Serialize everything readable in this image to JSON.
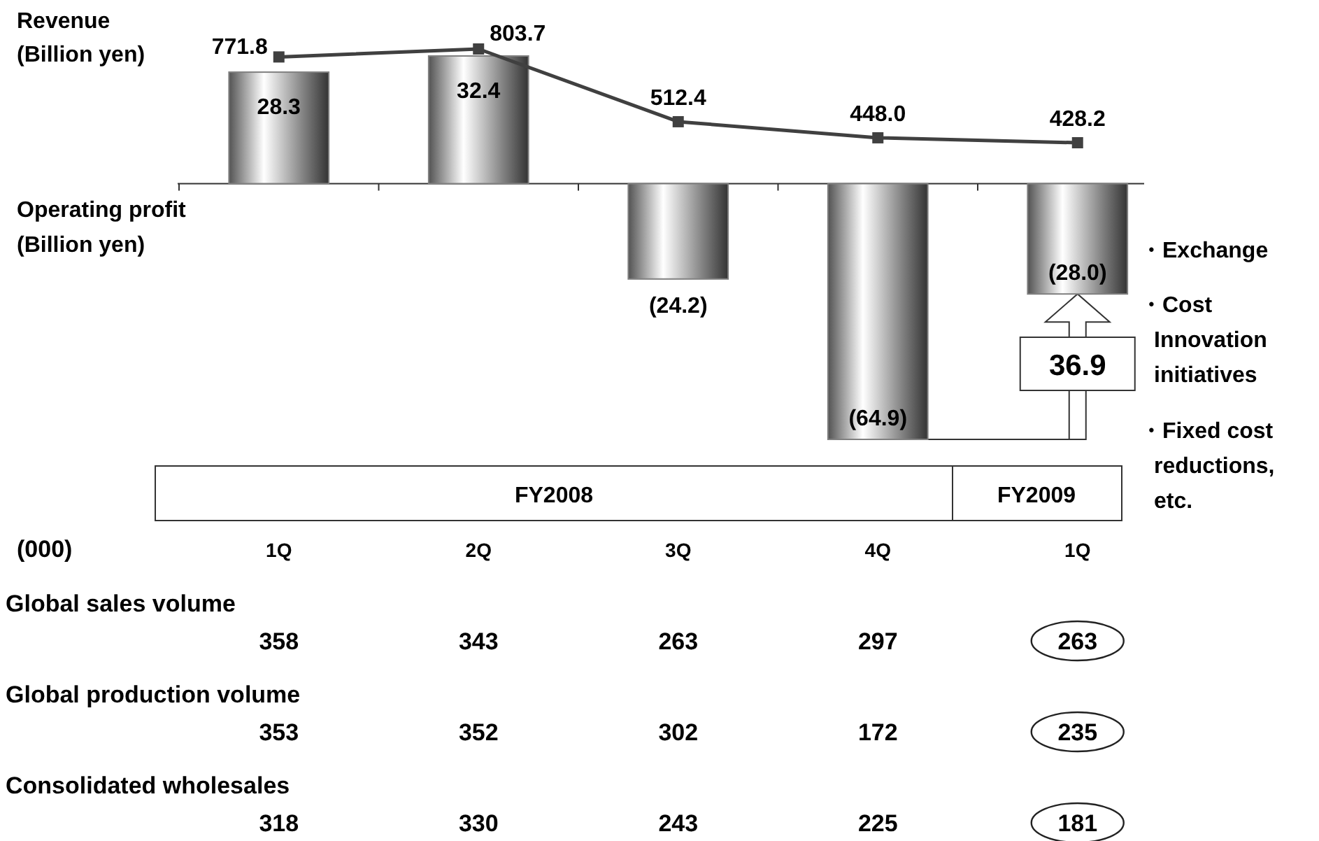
{
  "chart_data": {
    "type": "bar",
    "categories": [
      "1Q",
      "2Q",
      "3Q",
      "4Q",
      "1Q"
    ],
    "ylabel": "Operating profit (Billion yen)",
    "y2label": "Revenue (Billion yen)",
    "series": [
      {
        "color": "#808080",
        "values": [
          28.3,
          32.4,
          -24.2,
          -64.9,
          -28.0
        ],
        "value_labels": [
          "28.3",
          "32.4",
          "(24.2)",
          "(64.9)",
          "(28.0)"
        ]
      },
      {
        "type": "line",
        "axis": "y2",
        "color": "#404040",
        "marker": "square",
        "line_style": "solid",
        "values": [
          771.8,
          803.7,
          512.4,
          448.0,
          428.2
        ],
        "value_labels": [
          "771.8",
          "803.7",
          "512.4",
          "448.0",
          "428.2"
        ]
      }
    ],
    "annotations": [
      "FY2008",
      "FY2009",
      "36.9",
      "・Exchange",
      "・Cost Innovation initiatives",
      "・Fixed cost reductions, etc.",
      "(000)",
      "Global sales volume",
      "358 343 263 297 263",
      "Global production volume",
      "353 352 302 172 235",
      "Consolidated wholesales",
      "318 330 243 225 181"
    ]
  }
}
